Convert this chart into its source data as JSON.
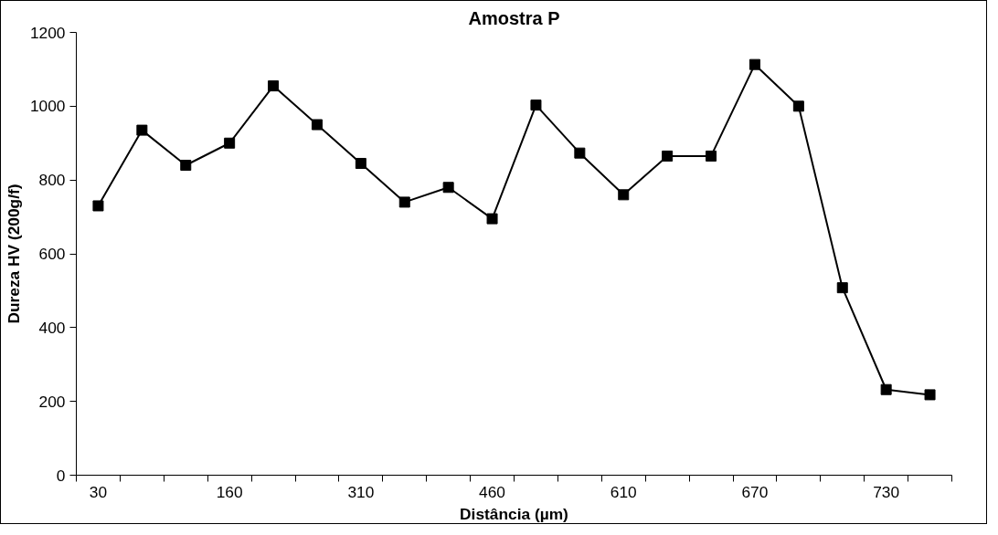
{
  "chart_data": {
    "type": "line",
    "title": "Amostra P",
    "xlabel": "Distância (µm)",
    "ylabel": "Dureza HV (200g/f)",
    "categories": [
      "30",
      null,
      null,
      "160",
      null,
      null,
      "310",
      null,
      null,
      "460",
      null,
      null,
      "610",
      null,
      null,
      "670",
      null,
      null,
      "730",
      null
    ],
    "series": [
      {
        "color": "#000000",
        "values": [
          730,
          935,
          840,
          900,
          1055,
          950,
          845,
          740,
          780,
          695,
          1003,
          873,
          760,
          865,
          865,
          1113,
          1000,
          508,
          232,
          218
        ]
      }
    ],
    "ylim": [
      0,
      1200
    ],
    "yticks": [
      0,
      200,
      400,
      600,
      800,
      1000,
      1200
    ],
    "grid": false,
    "marker": "square",
    "line_style": "solid"
  }
}
